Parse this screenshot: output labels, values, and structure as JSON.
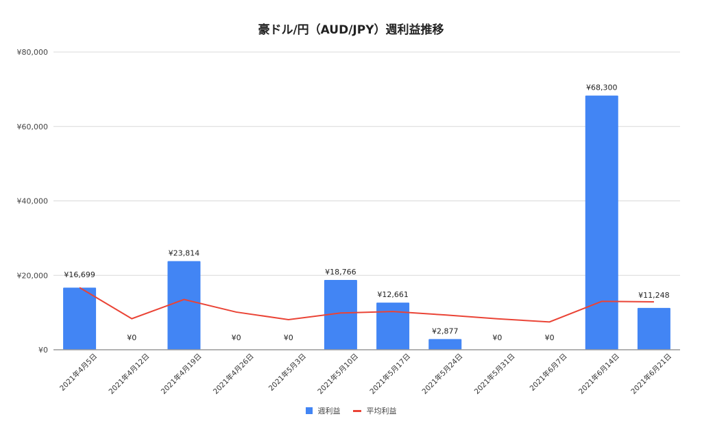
{
  "chart_data": {
    "type": "bar",
    "title": "豪ドル/円（AUD/JPY）週利益推移",
    "xlabel": "",
    "ylabel": "",
    "ylim": [
      0,
      80000
    ],
    "yticks": [
      "¥0",
      "¥20,000",
      "¥40,000",
      "¥60,000",
      "¥80,000"
    ],
    "ytick_values": [
      0,
      20000,
      40000,
      60000,
      80000
    ],
    "grid": true,
    "legend_position": "bottom",
    "categories": [
      "2021年4月5日",
      "2021年4月12日",
      "2021年4月19日",
      "2021年4月26日",
      "2021年5月3日",
      "2021年5月10日",
      "2021年5月17日",
      "2021年5月24日",
      "2021年5月31日",
      "2021年6月7日",
      "2021年6月14日",
      "2021年6月21日"
    ],
    "series": [
      {
        "name": "週利益",
        "type": "bar",
        "color": "#4285f4",
        "values": [
          16699,
          0,
          23814,
          0,
          0,
          18766,
          12661,
          2877,
          0,
          0,
          68300,
          11248
        ],
        "labels": [
          "¥16,699",
          "¥0",
          "¥23,814",
          "¥0",
          "¥0",
          "¥18,766",
          "¥12,661",
          "¥2,877",
          "¥0",
          "¥0",
          "¥68,300",
          "¥11,248"
        ]
      },
      {
        "name": "平均利益",
        "type": "line",
        "color": "#ea4335",
        "values": [
          16699,
          8350,
          13504,
          10128,
          8102,
          9879,
          10276,
          9351,
          8312,
          7481,
          13010,
          12863
        ]
      }
    ]
  },
  "legend": {
    "bar_label": "週利益",
    "line_label": "平均利益"
  }
}
